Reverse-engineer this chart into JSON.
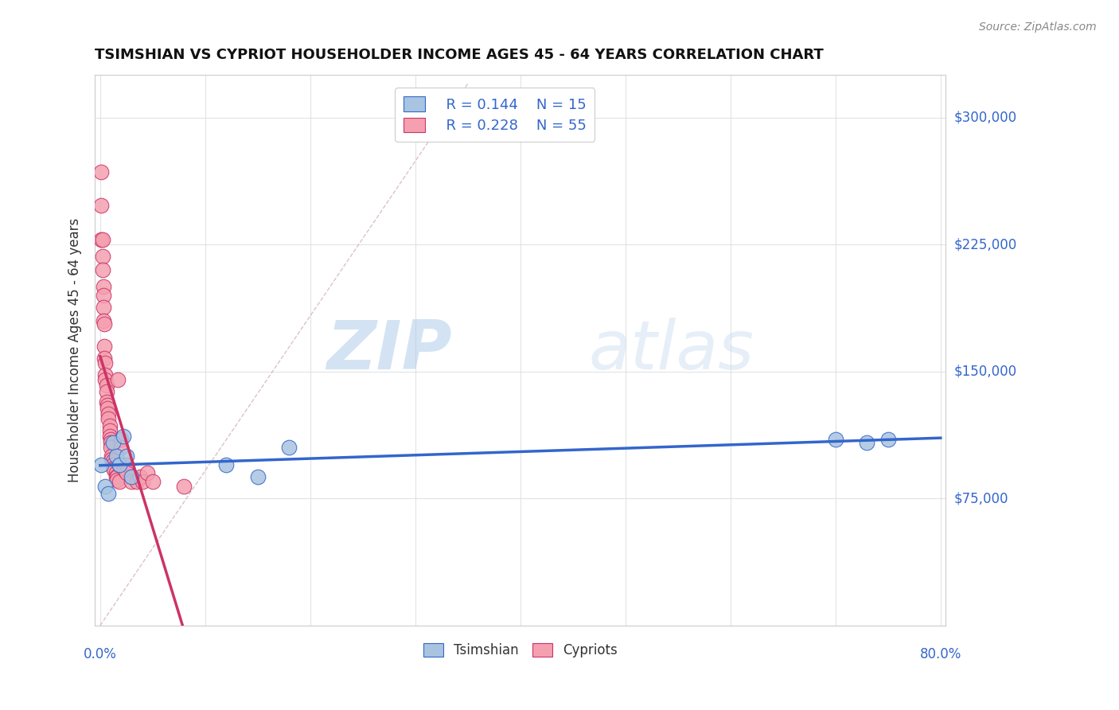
{
  "title": "TSIMSHIAN VS CYPRIOT HOUSEHOLDER INCOME AGES 45 - 64 YEARS CORRELATION CHART",
  "source": "Source: ZipAtlas.com",
  "ylabel": "Householder Income Ages 45 - 64 years",
  "xlim": [
    0.0,
    0.8
  ],
  "ylim": [
    0,
    325000
  ],
  "yticks": [
    0,
    75000,
    150000,
    225000,
    300000
  ],
  "ytick_labels": [
    "",
    "$75,000",
    "$150,000",
    "$225,000",
    "$300,000"
  ],
  "xticks": [
    0.0,
    0.1,
    0.2,
    0.3,
    0.4,
    0.5,
    0.6,
    0.7,
    0.8
  ],
  "legend_r1": "R = 0.144",
  "legend_n1": "N = 15",
  "legend_r2": "R = 0.228",
  "legend_n2": "N = 55",
  "legend_label1": "Tsimshian",
  "legend_label2": "Cypriots",
  "tsimshian_color": "#a8c4e0",
  "cypriot_color": "#f4a0b0",
  "tsimshian_line_color": "#3366cc",
  "cypriot_line_color": "#cc3366",
  "watermark_zip": "ZIP",
  "watermark_atlas": "atlas",
  "tsimshian_x": [
    0.001,
    0.005,
    0.008,
    0.012,
    0.015,
    0.018,
    0.022,
    0.025,
    0.03,
    0.12,
    0.15,
    0.18,
    0.7,
    0.73,
    0.75
  ],
  "tsimshian_y": [
    95000,
    82000,
    78000,
    108000,
    100000,
    95000,
    112000,
    100000,
    88000,
    95000,
    88000,
    105000,
    110000,
    108000,
    110000
  ],
  "cypriot_x": [
    0.001,
    0.001,
    0.001,
    0.002,
    0.002,
    0.002,
    0.003,
    0.003,
    0.003,
    0.003,
    0.004,
    0.004,
    0.004,
    0.005,
    0.005,
    0.005,
    0.006,
    0.006,
    0.006,
    0.007,
    0.007,
    0.008,
    0.008,
    0.009,
    0.009,
    0.009,
    0.01,
    0.01,
    0.01,
    0.011,
    0.011,
    0.012,
    0.012,
    0.013,
    0.013,
    0.015,
    0.015,
    0.016,
    0.016,
    0.017,
    0.018,
    0.018,
    0.02,
    0.02,
    0.022,
    0.023,
    0.025,
    0.025,
    0.03,
    0.035,
    0.038,
    0.04,
    0.045,
    0.05,
    0.08
  ],
  "cypriot_y": [
    268000,
    248000,
    228000,
    228000,
    218000,
    210000,
    200000,
    195000,
    188000,
    180000,
    178000,
    165000,
    158000,
    155000,
    148000,
    145000,
    142000,
    138000,
    132000,
    130000,
    128000,
    125000,
    122000,
    118000,
    115000,
    112000,
    110000,
    108000,
    105000,
    100000,
    98000,
    97000,
    95000,
    93000,
    92000,
    90000,
    88000,
    88000,
    86000,
    145000,
    85000,
    95000,
    110000,
    105000,
    95000,
    92000,
    95000,
    90000,
    85000,
    85000,
    88000,
    85000,
    90000,
    85000,
    82000
  ]
}
